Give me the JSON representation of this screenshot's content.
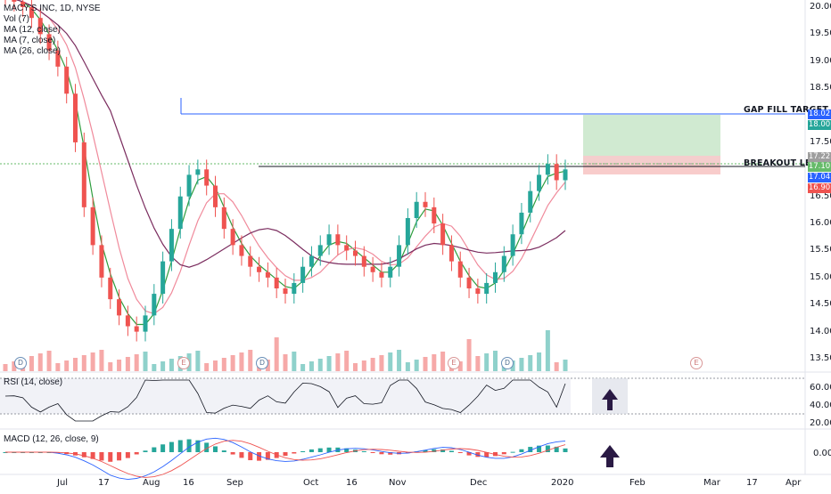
{
  "symbol": {
    "title": "MACY'S INC, 1D, NYSE",
    "indicators": [
      "Vol (7)",
      "MA (12, close)",
      "MA (7, close)",
      "MA (26, close)"
    ]
  },
  "annotations": {
    "gap_fill": "GAP FILL TARGET",
    "breakout": "BREAKOUT LEVEL"
  },
  "price_tags": {
    "gap": "18.02",
    "target": "18.00",
    "top": "17.22",
    "breakout": "17.10",
    "current": "17.04",
    "stop": "16.90"
  },
  "price_axis": [
    "20.00",
    "19.50",
    "19.00",
    "18.50",
    "18.00",
    "17.50",
    "17.00",
    "16.50",
    "16.00",
    "15.50",
    "15.00",
    "14.50",
    "14.00",
    "13.50"
  ],
  "rsi": {
    "title": "RSI (14, close)",
    "axis": [
      "60.00",
      "40.00",
      "20.00"
    ]
  },
  "macd": {
    "title": "MACD (12, 26, close, 9)",
    "axis": [
      "0.00"
    ]
  },
  "time_axis": [
    "Jul",
    "17",
    "Aug",
    "16",
    "Sep",
    "Oct",
    "16",
    "Nov",
    "Dec",
    "2020",
    "Feb",
    "Mar",
    "17",
    "Apr"
  ],
  "events": [
    "D",
    "E",
    "D",
    "E",
    "D",
    "E"
  ],
  "colors": {
    "up": "#26a69a",
    "down": "#ef5350",
    "ma_fast": "#2e9e3e",
    "ma_mid": "#f08a9b",
    "ma_slow": "#7b2d5f",
    "gap_line": "#2962ff",
    "breakout_line": "#4caf50",
    "target_fill": "#c8e6c9",
    "stop_fill": "#f7c6c5"
  },
  "chart_data": {
    "type": "candlestick",
    "series": [
      {
        "name": "MACY'S INC, 1D, NYSE",
        "close": [
          20.2,
          20.1,
          20.0,
          19.8,
          19.5,
          19.2,
          18.9,
          18.4,
          17.5,
          16.3,
          15.6,
          15.0,
          14.6,
          14.3,
          14.1,
          14.0,
          14.3,
          14.7,
          15.3,
          15.9,
          16.5,
          16.9,
          17.0,
          16.7,
          16.3,
          15.9,
          15.6,
          15.4,
          15.2,
          15.1,
          15.0,
          14.8,
          14.7,
          14.9,
          15.2,
          15.4,
          15.6,
          15.8,
          15.6,
          15.5,
          15.4,
          15.2,
          15.1,
          15.0,
          15.2,
          15.6,
          16.1,
          16.4,
          16.3,
          16.0,
          15.6,
          15.3,
          15.0,
          14.8,
          14.7,
          14.9,
          15.1,
          15.4,
          15.8,
          16.2,
          16.6,
          16.9,
          17.1,
          16.8,
          17.0
        ]
      }
    ],
    "horizontal_levels": [
      {
        "label": "GAP FILL TARGET",
        "value": 18.02
      },
      {
        "label": "BREAKOUT LEVEL",
        "value": 17.1
      }
    ],
    "ylim": [
      13.4,
      20.1
    ]
  }
}
